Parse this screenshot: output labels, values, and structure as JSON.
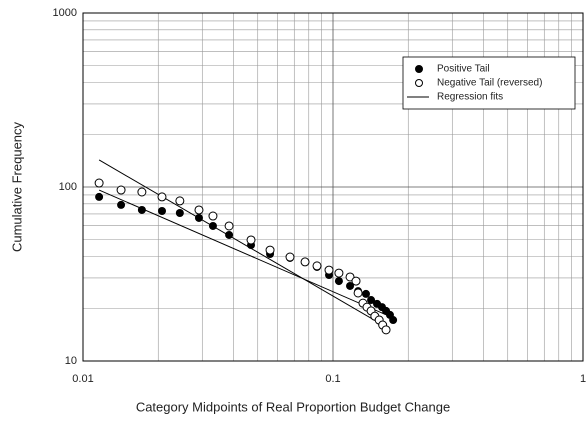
{
  "chart_data": {
    "type": "scatter",
    "x_label": "Category Midpoints of Real Proportion Budget Change",
    "y_label": "Cumulative Frequency",
    "xlim": [
      0.01,
      1
    ],
    "ylim": [
      10,
      1000
    ],
    "xticks": [
      0.01,
      0.1,
      1
    ],
    "yticks": [
      10,
      100,
      1000
    ],
    "xlog": true,
    "ylog": true,
    "grid": true,
    "legend": "upper right",
    "series": [
      {
        "name": "Positive Tail",
        "marker": "filled",
        "color": "#000000",
        "x": [
          0.0116,
          0.0142,
          0.0172,
          0.0207,
          0.0244,
          0.0291,
          0.0331,
          0.0384,
          0.047,
          0.056,
          0.0673,
          0.0773,
          0.0863,
          0.0964,
          0.1056,
          0.117,
          0.126,
          0.1355,
          0.142,
          0.15,
          0.157,
          0.163,
          0.169,
          0.174
        ],
        "values": [
          87.7,
          78.9,
          73.8,
          72.8,
          70.9,
          66.4,
          59.7,
          53,
          46.4,
          41.2,
          39.1,
          37.1,
          34.7,
          31.2,
          28.8,
          27,
          25.2,
          24.3,
          22.4,
          21.3,
          20.4,
          19.4,
          18.4,
          17.2
        ]
      },
      {
        "name": "Negative Tail (reversed)",
        "marker": "open",
        "color": "#000000",
        "x": [
          0.0116,
          0.0142,
          0.0172,
          0.0207,
          0.0244,
          0.0291,
          0.0331,
          0.0384,
          0.047,
          0.056,
          0.0673,
          0.0773,
          0.0863,
          0.0964,
          0.1056,
          0.117,
          0.1236,
          0.126,
          0.1318,
          0.1368,
          0.142,
          0.147,
          0.153,
          0.158,
          0.163
        ],
        "values": [
          105.4,
          96.1,
          93.6,
          87.7,
          83.2,
          73.8,
          68.1,
          59.7,
          49.6,
          43.4,
          39.6,
          37.1,
          35.2,
          33.3,
          32,
          30.4,
          28.8,
          24.6,
          21.5,
          20.4,
          19.4,
          18.1,
          17.2,
          16.1,
          15.1
        ]
      },
      {
        "name": "Regression fits",
        "marker": "line",
        "color": "#000000",
        "x": [
          0.0116,
          0.163
        ],
        "values": [
          143,
          15.7
        ]
      },
      {
        "marker": "line",
        "color": "#000000",
        "x": [
          0.0116,
          0.174
        ],
        "values": [
          96,
          17.7
        ]
      }
    ]
  }
}
